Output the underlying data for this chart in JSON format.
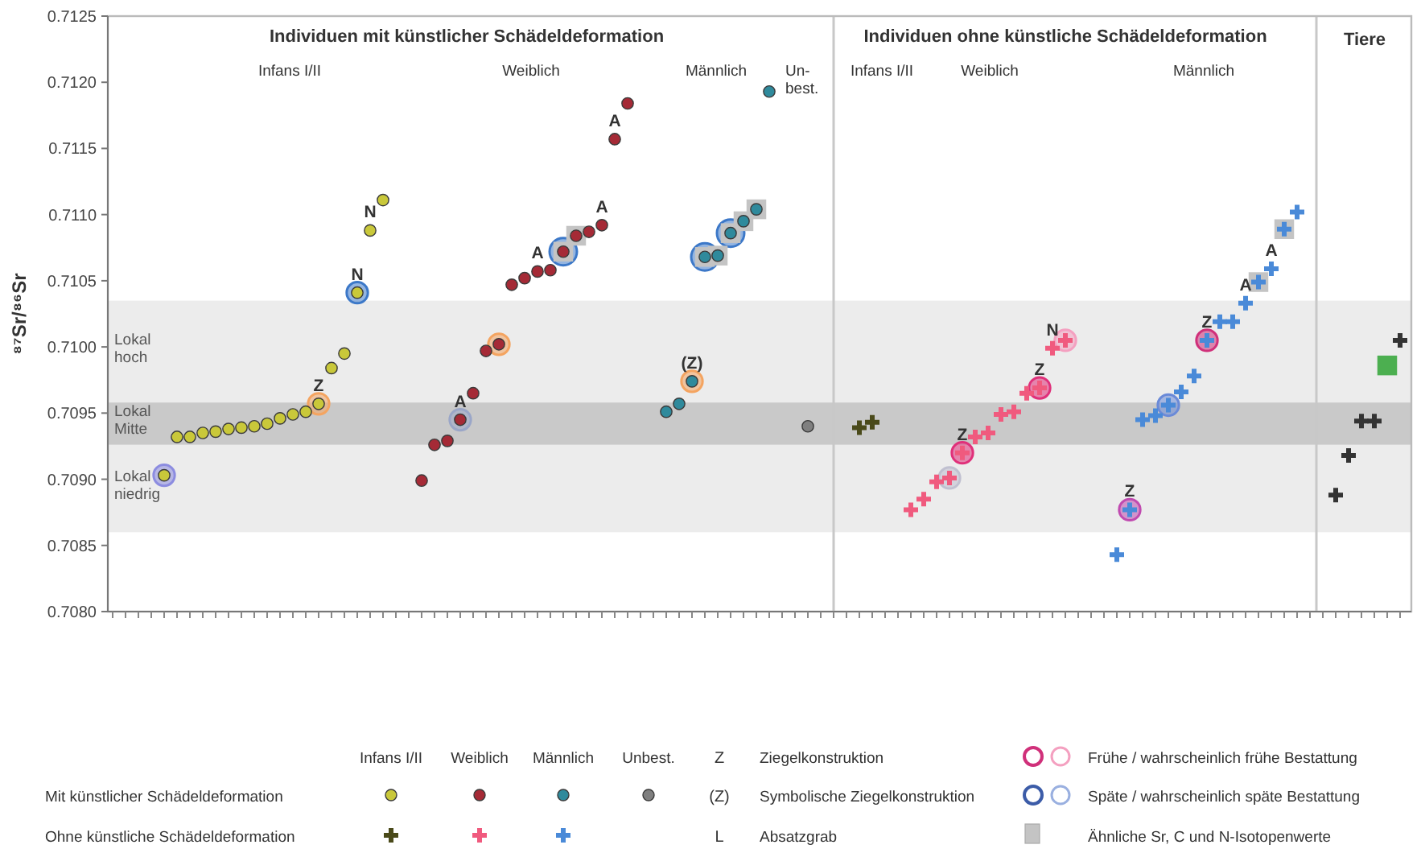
{
  "chart_data": {
    "type": "scatter",
    "ylabel": "⁸⁷Sr/⁸⁶Sr",
    "tick_labels": "y",
    "categories": [
      null,
      null,
      null,
      null,
      null,
      null,
      null,
      null,
      null,
      null,
      null,
      null,
      null,
      null,
      null,
      null,
      null,
      null,
      null,
      null,
      null,
      null,
      null,
      null,
      null,
      null,
      null,
      null,
      null,
      null,
      null,
      null,
      null,
      null,
      null,
      null,
      null,
      null,
      null,
      null,
      null,
      null,
      null,
      null,
      null,
      null,
      null,
      null,
      null,
      null,
      null,
      null,
      null,
      null,
      null,
      null,
      null,
      null,
      null,
      null,
      null,
      null,
      null,
      null,
      null,
      null,
      null,
      null,
      null,
      null,
      null,
      null,
      null,
      null,
      null,
      null,
      null,
      null,
      null,
      null,
      null,
      null,
      null,
      null,
      null,
      null,
      null,
      null,
      null,
      null,
      null,
      null,
      null,
      null,
      null,
      null,
      null,
      null,
      null,
      null,
      null
    ],
    "ylim": [
      0.708,
      0.7125
    ],
    "yticks": [
      {
        "value": 0.708,
        "label": "0.7080"
      },
      {
        "value": 0.7085,
        "label": "0.7085"
      },
      {
        "value": 0.709,
        "label": "0.7090"
      },
      {
        "value": 0.7095,
        "label": "0.7095"
      },
      {
        "value": 0.71,
        "label": "0.7100"
      },
      {
        "value": 0.7105,
        "label": "0.7105"
      },
      {
        "value": 0.711,
        "label": "0.7110"
      },
      {
        "value": 0.7115,
        "label": "0.7115"
      },
      {
        "value": 0.712,
        "label": "0.7120"
      },
      {
        "value": 0.7125,
        "label": "0.7125"
      }
    ],
    "bands": [
      {
        "axis": "y",
        "from": 0.70958,
        "to": 0.71035,
        "label": "Lokal hoch",
        "color": "#ececec"
      },
      {
        "axis": "y",
        "from": 0.70926,
        "to": 0.70958,
        "label": "Lokal Mitte",
        "color": "#c9c9c9"
      },
      {
        "axis": "y",
        "from": 0.7086,
        "to": 0.70926,
        "label": "Lokal niedrig",
        "color": "#ececec"
      }
    ],
    "series": [
      {
        "type": "scatter",
        "marker": "square",
        "color": "#c4c4c4",
        "values": [
          null,
          null,
          null,
          null,
          null,
          null,
          null,
          null,
          null,
          null,
          null,
          null,
          null,
          null,
          null,
          null,
          null,
          null,
          null,
          null,
          null,
          null,
          null,
          null,
          null,
          null,
          null,
          null,
          null,
          null,
          null,
          null,
          null,
          null,
          null,
          0.71072,
          0.71084,
          null,
          null,
          null,
          null,
          null,
          null,
          null,
          null,
          null,
          0.71068,
          0.71069,
          0.71086,
          0.71095,
          0.71104,
          null,
          null,
          null,
          null,
          null,
          null,
          null,
          null,
          null,
          null,
          null,
          null,
          null,
          null,
          null,
          null,
          null,
          null,
          null,
          null,
          null,
          null,
          null,
          null,
          null,
          null,
          null,
          null,
          null,
          null,
          null,
          null,
          null,
          null,
          null,
          null,
          null,
          null,
          0.71049,
          null,
          0.71089,
          null,
          null,
          null,
          null,
          null,
          null,
          null,
          null,
          null
        ]
      },
      {
        "type": "bubble",
        "values": [
          null,
          null,
          null,
          null,
          0.70903,
          null,
          null,
          null,
          null,
          null,
          null,
          null,
          null,
          null,
          null,
          null,
          0.70957,
          null,
          null,
          0.71041,
          null,
          null,
          null,
          null,
          null,
          null,
          null,
          0.70945,
          null,
          null,
          0.71002,
          null,
          null,
          null,
          null,
          0.71072,
          null,
          null,
          null,
          null,
          null,
          null,
          null,
          null,
          null,
          0.70974,
          0.71068,
          null,
          0.71086,
          null,
          null,
          null,
          null,
          null,
          null,
          null,
          null,
          null,
          null,
          null,
          null,
          null,
          null,
          null,
          null,
          0.70901,
          0.7092,
          null,
          null,
          null,
          null,
          null,
          0.70969,
          null,
          0.71005,
          null,
          null,
          null,
          null,
          0.70877,
          null,
          null,
          0.70956,
          null,
          null,
          0.71005,
          null,
          null,
          null,
          null,
          null,
          null,
          null,
          null,
          null,
          null,
          null,
          null,
          null,
          null,
          null
        ],
        "sizes": [
          null,
          null,
          null,
          null,
          0.6,
          null,
          null,
          null,
          null,
          null,
          null,
          null,
          null,
          null,
          null,
          null,
          0.6,
          null,
          null,
          0.6,
          null,
          null,
          null,
          null,
          null,
          null,
          null,
          0.6,
          null,
          null,
          0.6,
          null,
          null,
          null,
          null,
          1,
          null,
          null,
          null,
          null,
          null,
          null,
          null,
          null,
          null,
          0.6,
          1,
          null,
          1,
          null,
          null,
          null,
          null,
          null,
          null,
          null,
          null,
          null,
          null,
          null,
          null,
          null,
          null,
          null,
          null,
          0.6,
          0.6,
          null,
          null,
          null,
          null,
          null,
          0.6,
          null,
          0.6,
          null,
          null,
          null,
          null,
          0.6,
          null,
          null,
          0.6,
          null,
          null,
          0.6,
          null,
          null,
          null,
          null,
          null,
          null,
          null,
          null,
          null,
          null,
          null,
          null,
          null,
          null,
          null
        ],
        "colors": [
          null,
          null,
          null,
          null,
          "#8c8ce0",
          null,
          null,
          null,
          null,
          null,
          null,
          null,
          null,
          null,
          null,
          null,
          "#f4a460",
          null,
          null,
          "#3c78c8",
          null,
          null,
          null,
          null,
          null,
          null,
          null,
          "#9aa6c8",
          null,
          null,
          "#f4a460",
          null,
          null,
          null,
          null,
          "#3c78c8",
          null,
          null,
          null,
          null,
          null,
          null,
          null,
          null,
          null,
          "#f4a460",
          "#3c78c8",
          null,
          "#3c78c8",
          null,
          null,
          null,
          null,
          null,
          null,
          null,
          null,
          null,
          null,
          null,
          null,
          null,
          null,
          null,
          null,
          "#c0c0d0",
          "#e0307a",
          null,
          null,
          null,
          null,
          null,
          "#e0307a",
          null,
          "#f4a0c0",
          null,
          null,
          null,
          null,
          "#c04ab0",
          null,
          null,
          "#6a8ad8",
          null,
          null,
          "#d0307a",
          null,
          null,
          null,
          null,
          null,
          null,
          null,
          null,
          null,
          null,
          null,
          null,
          null,
          null,
          null
        ]
      },
      {
        "type": "scatter",
        "marker": "circle",
        "color": "#c9c83a",
        "values": [
          null,
          null,
          null,
          null,
          0.70903,
          0.70932,
          0.70932,
          0.70935,
          0.70936,
          0.70938,
          0.70939,
          0.7094,
          0.70942,
          0.70946,
          0.70949,
          0.70951,
          0.70957,
          0.70984,
          0.70995,
          0.71041,
          0.71088,
          0.71111,
          null,
          null,
          null,
          null,
          null,
          null,
          null,
          null,
          null,
          null,
          null,
          null,
          null,
          null,
          null,
          null,
          null,
          null,
          null,
          null,
          null,
          null,
          null,
          null,
          null,
          null,
          null,
          null,
          null,
          null,
          null,
          null,
          null,
          null,
          null,
          null,
          null,
          null,
          null,
          null,
          null,
          null,
          null,
          null,
          null,
          null,
          null,
          null,
          null,
          null,
          null,
          null,
          null,
          null,
          null,
          null,
          null,
          null,
          null,
          null,
          null,
          null,
          null,
          null,
          null,
          null,
          null,
          null,
          null,
          null,
          null,
          null,
          null,
          null,
          null,
          null,
          null,
          null,
          null
        ],
        "value_labels": [
          null,
          null,
          null,
          null,
          null,
          null,
          null,
          null,
          null,
          null,
          null,
          null,
          null,
          null,
          null,
          null,
          "Z",
          null,
          null,
          "N",
          "N",
          null,
          null,
          null,
          null,
          null,
          null,
          null,
          null,
          null,
          null,
          null,
          null,
          null,
          null,
          null,
          null,
          null,
          null,
          null,
          null,
          null,
          null,
          null,
          null,
          null,
          null,
          null,
          null,
          null,
          null,
          null,
          null,
          null,
          null,
          null,
          null,
          null,
          null,
          null,
          null,
          null,
          null,
          null,
          null,
          null,
          null,
          null,
          null,
          null,
          null,
          null,
          null,
          null,
          null,
          null,
          null,
          null,
          null,
          null,
          null,
          null,
          null,
          null,
          null,
          null,
          null,
          null,
          null,
          null,
          null,
          null,
          null,
          null,
          null,
          null,
          null,
          null,
          null,
          null,
          null
        ]
      },
      {
        "type": "scatter",
        "marker": "circle",
        "color": "#a52a36",
        "values": [
          null,
          null,
          null,
          null,
          null,
          null,
          null,
          null,
          null,
          null,
          null,
          null,
          null,
          null,
          null,
          null,
          null,
          null,
          null,
          null,
          null,
          null,
          null,
          null,
          0.70899,
          0.70926,
          0.70929,
          0.70945,
          0.70965,
          0.70997,
          0.71002,
          0.71047,
          0.71052,
          0.71057,
          0.71058,
          0.71072,
          0.71084,
          0.71087,
          0.71092,
          0.71157,
          0.71184,
          null,
          null,
          null,
          null,
          null,
          null,
          null,
          null,
          null,
          null,
          null,
          null,
          null,
          null,
          null,
          null,
          null,
          null,
          null,
          null,
          null,
          null,
          null,
          null,
          null,
          null,
          null,
          null,
          null,
          null,
          null,
          null,
          null,
          null,
          null,
          null,
          null,
          null,
          null,
          null,
          null,
          null,
          null,
          null,
          null,
          null,
          null,
          null,
          null,
          null,
          null,
          null,
          null,
          null,
          null,
          null,
          null,
          null,
          null,
          null
        ],
        "value_labels": [
          null,
          null,
          null,
          null,
          null,
          null,
          null,
          null,
          null,
          null,
          null,
          null,
          null,
          null,
          null,
          null,
          null,
          null,
          null,
          null,
          null,
          null,
          null,
          null,
          null,
          null,
          null,
          "A",
          null,
          null,
          null,
          null,
          null,
          "A",
          null,
          null,
          null,
          null,
          "A",
          "A",
          null,
          null,
          null,
          null,
          null,
          null,
          null,
          null,
          null,
          null,
          null,
          null,
          null,
          null,
          null,
          null,
          null,
          null,
          null,
          null,
          null,
          null,
          null,
          null,
          null,
          null,
          null,
          null,
          null,
          null,
          null,
          null,
          null,
          null,
          null,
          null,
          null,
          null,
          null,
          null,
          null,
          null,
          null,
          null,
          null,
          null,
          null,
          null,
          null,
          null,
          null,
          null,
          null,
          null,
          null,
          null,
          null,
          null,
          null,
          null,
          null
        ]
      },
      {
        "type": "scatter",
        "marker": "circle",
        "color": "#2f8a9c",
        "values": [
          null,
          null,
          null,
          null,
          null,
          null,
          null,
          null,
          null,
          null,
          null,
          null,
          null,
          null,
          null,
          null,
          null,
          null,
          null,
          null,
          null,
          null,
          null,
          null,
          null,
          null,
          null,
          null,
          null,
          null,
          null,
          null,
          null,
          null,
          null,
          null,
          null,
          null,
          null,
          null,
          null,
          null,
          null,
          0.70951,
          0.70957,
          0.70974,
          0.71068,
          0.71069,
          0.71086,
          0.71095,
          0.71104,
          0.71193,
          null,
          null,
          null,
          null,
          null,
          null,
          null,
          null,
          null,
          null,
          null,
          null,
          null,
          null,
          null,
          null,
          null,
          null,
          null,
          null,
          null,
          null,
          null,
          null,
          null,
          null,
          null,
          null,
          null,
          null,
          null,
          null,
          null,
          null,
          null,
          null,
          null,
          null,
          null,
          null,
          null,
          null,
          null,
          null,
          null,
          null,
          null,
          null,
          null
        ],
        "value_labels": [
          null,
          null,
          null,
          null,
          null,
          null,
          null,
          null,
          null,
          null,
          null,
          null,
          null,
          null,
          null,
          null,
          null,
          null,
          null,
          null,
          null,
          null,
          null,
          null,
          null,
          null,
          null,
          null,
          null,
          null,
          null,
          null,
          null,
          null,
          null,
          null,
          null,
          null,
          null,
          null,
          null,
          null,
          null,
          null,
          null,
          "(Z)",
          null,
          null,
          null,
          null,
          null,
          null,
          null,
          null,
          null,
          null,
          null,
          null,
          null,
          null,
          null,
          null,
          null,
          null,
          null,
          null,
          null,
          null,
          null,
          null,
          null,
          null,
          null,
          null,
          null,
          null,
          null,
          null,
          null,
          null,
          null,
          null,
          null,
          null,
          null,
          null,
          null,
          null,
          null,
          null,
          null,
          null,
          null,
          null,
          null,
          null,
          null,
          null,
          null,
          null,
          null
        ]
      },
      {
        "type": "scatter",
        "marker": "circle",
        "color": "#7f7f7f",
        "values": [
          null,
          null,
          null,
          null,
          null,
          null,
          null,
          null,
          null,
          null,
          null,
          null,
          null,
          null,
          null,
          null,
          null,
          null,
          null,
          null,
          null,
          null,
          null,
          null,
          null,
          null,
          null,
          null,
          null,
          null,
          null,
          null,
          null,
          null,
          null,
          null,
          null,
          null,
          null,
          null,
          null,
          null,
          null,
          null,
          null,
          null,
          null,
          null,
          null,
          null,
          null,
          null,
          null,
          null,
          0.7094,
          null,
          null,
          null,
          null,
          null,
          null,
          null,
          null,
          null,
          null,
          null,
          null,
          null,
          null,
          null,
          null,
          null,
          null,
          null,
          null,
          null,
          null,
          null,
          null,
          null,
          null,
          null,
          null,
          null,
          null,
          null,
          null,
          null,
          null,
          null,
          null,
          null,
          null,
          null,
          null,
          null,
          null,
          null,
          null,
          null,
          null
        ]
      },
      {
        "type": "scatter",
        "marker": "cross",
        "color": "#4a4a1a",
        "values": [
          null,
          null,
          null,
          null,
          null,
          null,
          null,
          null,
          null,
          null,
          null,
          null,
          null,
          null,
          null,
          null,
          null,
          null,
          null,
          null,
          null,
          null,
          null,
          null,
          null,
          null,
          null,
          null,
          null,
          null,
          null,
          null,
          null,
          null,
          null,
          null,
          null,
          null,
          null,
          null,
          null,
          null,
          null,
          null,
          null,
          null,
          null,
          null,
          null,
          null,
          null,
          null,
          null,
          null,
          null,
          null,
          null,
          null,
          0.70939,
          0.70943,
          null,
          null,
          null,
          null,
          null,
          null,
          null,
          null,
          null,
          null,
          null,
          null,
          null,
          null,
          null,
          null,
          null,
          null,
          null,
          null,
          null,
          null,
          null,
          null,
          null,
          null,
          null,
          null,
          null,
          null,
          null,
          null,
          null,
          null,
          null,
          null,
          null,
          null,
          null,
          null,
          null
        ]
      },
      {
        "type": "scatter",
        "marker": "cross",
        "color": "#f05a7e",
        "values": [
          null,
          null,
          null,
          null,
          null,
          null,
          null,
          null,
          null,
          null,
          null,
          null,
          null,
          null,
          null,
          null,
          null,
          null,
          null,
          null,
          null,
          null,
          null,
          null,
          null,
          null,
          null,
          null,
          null,
          null,
          null,
          null,
          null,
          null,
          null,
          null,
          null,
          null,
          null,
          null,
          null,
          null,
          null,
          null,
          null,
          null,
          null,
          null,
          null,
          null,
          null,
          null,
          null,
          null,
          null,
          null,
          null,
          null,
          null,
          null,
          null,
          null,
          0.70877,
          0.70885,
          0.70898,
          0.70901,
          0.7092,
          0.70932,
          0.70935,
          0.70949,
          0.70951,
          0.70965,
          0.70969,
          0.70999,
          0.71005,
          null,
          null,
          null,
          null,
          null,
          null,
          null,
          null,
          null,
          null,
          null,
          null,
          null,
          null,
          null,
          null,
          null,
          null,
          null,
          null,
          null,
          null,
          null,
          null,
          null,
          null
        ],
        "value_labels": [
          null,
          null,
          null,
          null,
          null,
          null,
          null,
          null,
          null,
          null,
          null,
          null,
          null,
          null,
          null,
          null,
          null,
          null,
          null,
          null,
          null,
          null,
          null,
          null,
          null,
          null,
          null,
          null,
          null,
          null,
          null,
          null,
          null,
          null,
          null,
          null,
          null,
          null,
          null,
          null,
          null,
          null,
          null,
          null,
          null,
          null,
          null,
          null,
          null,
          null,
          null,
          null,
          null,
          null,
          null,
          null,
          null,
          null,
          null,
          null,
          null,
          null,
          null,
          null,
          null,
          null,
          "Z",
          null,
          null,
          null,
          null,
          null,
          "Z",
          "N",
          null,
          null,
          null,
          null,
          null,
          null,
          null,
          null,
          null,
          null,
          null,
          null,
          null,
          null,
          null,
          null,
          null,
          null,
          null,
          null,
          null,
          null,
          null,
          null,
          null,
          null,
          null
        ]
      },
      {
        "type": "scatter",
        "marker": "cross",
        "color": "#4a8ad8",
        "values": [
          null,
          null,
          null,
          null,
          null,
          null,
          null,
          null,
          null,
          null,
          null,
          null,
          null,
          null,
          null,
          null,
          null,
          null,
          null,
          null,
          null,
          null,
          null,
          null,
          null,
          null,
          null,
          null,
          null,
          null,
          null,
          null,
          null,
          null,
          null,
          null,
          null,
          null,
          null,
          null,
          null,
          null,
          null,
          null,
          null,
          null,
          null,
          null,
          null,
          null,
          null,
          null,
          null,
          null,
          null,
          null,
          null,
          null,
          null,
          null,
          null,
          null,
          null,
          null,
          null,
          null,
          null,
          null,
          null,
          null,
          null,
          null,
          null,
          null,
          null,
          null,
          null,
          null,
          0.70843,
          0.70877,
          0.70945,
          0.70948,
          0.70956,
          0.70966,
          0.70978,
          0.71005,
          0.71019,
          0.71019,
          0.71033,
          0.71049,
          0.71059,
          0.71089,
          0.71102,
          null,
          null,
          null,
          null,
          null,
          null,
          null,
          null
        ],
        "value_labels": [
          null,
          null,
          null,
          null,
          null,
          null,
          null,
          null,
          null,
          null,
          null,
          null,
          null,
          null,
          null,
          null,
          null,
          null,
          null,
          null,
          null,
          null,
          null,
          null,
          null,
          null,
          null,
          null,
          null,
          null,
          null,
          null,
          null,
          null,
          null,
          null,
          null,
          null,
          null,
          null,
          null,
          null,
          null,
          null,
          null,
          null,
          null,
          null,
          null,
          null,
          null,
          null,
          null,
          null,
          null,
          null,
          null,
          null,
          null,
          null,
          null,
          null,
          null,
          null,
          null,
          null,
          null,
          null,
          null,
          null,
          null,
          null,
          null,
          null,
          null,
          null,
          null,
          null,
          null,
          "Z",
          null,
          null,
          null,
          null,
          null,
          "Z",
          null,
          null,
          "A",
          null,
          "A",
          null,
          null,
          null,
          null,
          null,
          null,
          null,
          null,
          null,
          null
        ]
      },
      {
        "type": "scatter",
        "marker": "cross",
        "color": "#333333",
        "values": [
          null,
          null,
          null,
          null,
          null,
          null,
          null,
          null,
          null,
          null,
          null,
          null,
          null,
          null,
          null,
          null,
          null,
          null,
          null,
          null,
          null,
          null,
          null,
          null,
          null,
          null,
          null,
          null,
          null,
          null,
          null,
          null,
          null,
          null,
          null,
          null,
          null,
          null,
          null,
          null,
          null,
          null,
          null,
          null,
          null,
          null,
          null,
          null,
          null,
          null,
          null,
          null,
          null,
          null,
          null,
          null,
          null,
          null,
          null,
          null,
          null,
          null,
          null,
          null,
          null,
          null,
          null,
          null,
          null,
          null,
          null,
          null,
          null,
          null,
          null,
          null,
          null,
          null,
          null,
          null,
          null,
          null,
          null,
          null,
          null,
          null,
          null,
          null,
          null,
          null,
          null,
          null,
          null,
          null,
          null,
          0.70888,
          0.70918,
          0.70944,
          0.70944,
          null,
          0.71005
        ]
      },
      {
        "type": "scatter",
        "marker": "square",
        "color": "#4caf50",
        "values": [
          null,
          null,
          null,
          null,
          null,
          null,
          null,
          null,
          null,
          null,
          null,
          null,
          null,
          null,
          null,
          null,
          null,
          null,
          null,
          null,
          null,
          null,
          null,
          null,
          null,
          null,
          null,
          null,
          null,
          null,
          null,
          null,
          null,
          null,
          null,
          null,
          null,
          null,
          null,
          null,
          null,
          null,
          null,
          null,
          null,
          null,
          null,
          null,
          null,
          null,
          null,
          null,
          null,
          null,
          null,
          null,
          null,
          null,
          null,
          null,
          null,
          null,
          null,
          null,
          null,
          null,
          null,
          null,
          null,
          null,
          null,
          null,
          null,
          null,
          null,
          null,
          null,
          null,
          null,
          null,
          null,
          null,
          null,
          null,
          null,
          null,
          null,
          null,
          null,
          null,
          null,
          null,
          null,
          null,
          null,
          null,
          null,
          null,
          null,
          0.70986,
          null
        ]
      }
    ],
    "annotations": [
      "Individuen mit künstlicher Schädeldeformation",
      "Infans I/II",
      "Weiblich",
      "Männlich",
      "Un-\nbest.",
      "Individuen ohne künstliche Schädeldeformation",
      "Infans I/II",
      "Weiblich",
      "Männlich",
      "Tiere",
      "Infans I/II",
      "Weiblich",
      "Männlich",
      "Unbest.",
      "Mit künstlicher Schädeldeformation",
      "Ohne künstliche Schädeldeformation",
      "Z",
      "Ziegelkonstruktion",
      "(Z)",
      "Symbolische Ziegelkonstruktion",
      "L",
      "Absatzgrab",
      "Frühe / wahrscheinlich frühe Bestattung",
      "Späte / wahrscheinlich späte Bestattung",
      "Ähnliche Sr, C und N-Isotopenwerte"
    ]
  }
}
